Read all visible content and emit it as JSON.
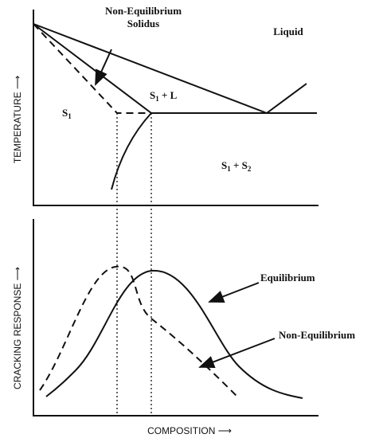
{
  "axes": {
    "temperature": "TEMPERATURE ⟶",
    "cracking": "CRACKING RESPONSE ⟶",
    "composition": "COMPOSITION ⟶"
  },
  "top_labels": {
    "non_eq_line1": "Non-Equilibrium",
    "non_eq_line2": "Solidus",
    "liquid": "Liquid"
  },
  "regions": [
    [
      "S",
      "1",
      " + L"
    ],
    [
      "S",
      "1"
    ],
    [
      "S",
      "1",
      " + S",
      "2"
    ]
  ],
  "bottom_labels": {
    "equilibrium": "Equilibrium",
    "non_equilibrium": "Non-Equilibrium"
  }
}
